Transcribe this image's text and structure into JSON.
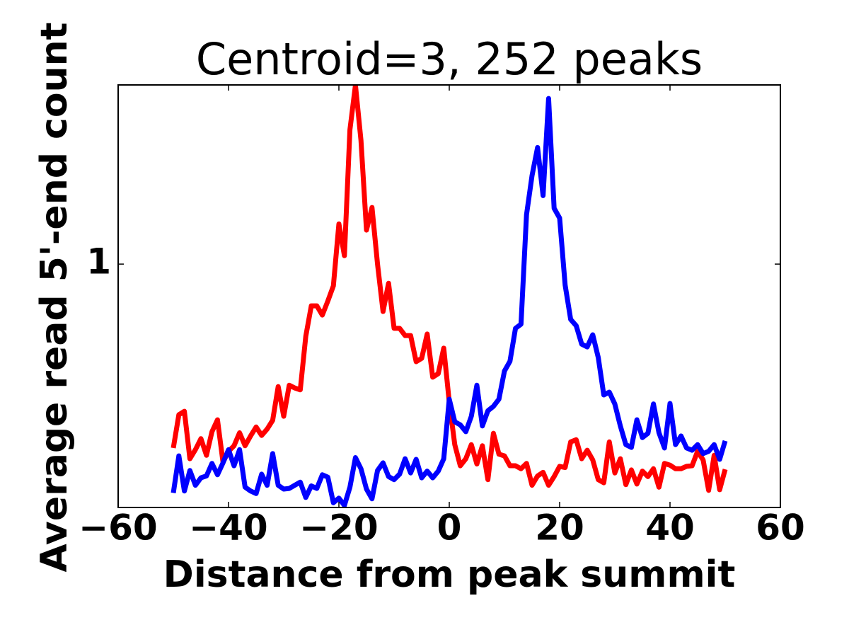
{
  "chart_data": {
    "type": "line",
    "title": "Centroid=3, 252 peaks",
    "xlabel": "Distance from peak summit",
    "ylabel": "Average read 5'-end count",
    "x": [
      -50,
      -49,
      -48,
      -47,
      -46,
      -45,
      -44,
      -43,
      -42,
      -41,
      -40,
      -39,
      -38,
      -37,
      -36,
      -35,
      -34,
      -33,
      -32,
      -31,
      -30,
      -29,
      -28,
      -27,
      -26,
      -25,
      -24,
      -23,
      -22,
      -21,
      -20,
      -19,
      -18,
      -17,
      -16,
      -15,
      -14,
      -13,
      -12,
      -11,
      -10,
      -9,
      -8,
      -7,
      -6,
      -5,
      -4,
      -3,
      -2,
      -1,
      0,
      1,
      2,
      3,
      4,
      5,
      6,
      7,
      8,
      9,
      10,
      11,
      12,
      13,
      14,
      15,
      16,
      17,
      18,
      19,
      20,
      21,
      22,
      23,
      24,
      25,
      26,
      27,
      28,
      29,
      30,
      31,
      32,
      33,
      34,
      35,
      36,
      37,
      38,
      39,
      40,
      41,
      42,
      43,
      44,
      45,
      46,
      47,
      48,
      49,
      50
    ],
    "series": [
      {
        "color": "#ff0000",
        "values": [
          0.547,
          0.61,
          0.617,
          0.528,
          0.544,
          0.564,
          0.534,
          0.577,
          0.6,
          0.522,
          0.541,
          0.551,
          0.575,
          0.551,
          0.569,
          0.586,
          0.57,
          0.582,
          0.599,
          0.669,
          0.607,
          0.672,
          0.666,
          0.662,
          0.789,
          0.872,
          0.872,
          0.846,
          0.886,
          0.931,
          1.141,
          1.028,
          1.554,
          1.799,
          1.501,
          1.118,
          1.204,
          1.0,
          0.856,
          0.939,
          0.81,
          0.81,
          0.791,
          0.791,
          0.726,
          0.734,
          0.795,
          0.69,
          0.698,
          0.759,
          0.636,
          0.553,
          0.516,
          0.528,
          0.553,
          0.519,
          0.551,
          0.493,
          0.574,
          0.536,
          0.533,
          0.516,
          0.516,
          0.511,
          0.52,
          0.484,
          0.499,
          0.505,
          0.484,
          0.498,
          0.515,
          0.513,
          0.558,
          0.562,
          0.528,
          0.543,
          0.526,
          0.493,
          0.488,
          0.558,
          0.504,
          0.528,
          0.485,
          0.509,
          0.486,
          0.507,
          0.498,
          0.511,
          0.481,
          0.52,
          0.517,
          0.511,
          0.511,
          0.515,
          0.516,
          0.541,
          0.526,
          0.476,
          0.534,
          0.477,
          0.51
        ]
      },
      {
        "color": "#0000ff",
        "values": [
          0.472,
          0.533,
          0.475,
          0.508,
          0.484,
          0.496,
          0.499,
          0.52,
          0.501,
          0.521,
          0.544,
          0.516,
          0.544,
          0.481,
          0.475,
          0.471,
          0.502,
          0.484,
          0.537,
          0.484,
          0.478,
          0.479,
          0.484,
          0.489,
          0.465,
          0.483,
          0.479,
          0.501,
          0.497,
          0.457,
          0.464,
          0.453,
          0.481,
          0.53,
          0.511,
          0.478,
          0.463,
          0.508,
          0.521,
          0.498,
          0.493,
          0.502,
          0.528,
          0.504,
          0.527,
          0.496,
          0.507,
          0.496,
          0.507,
          0.528,
          0.642,
          0.596,
          0.59,
          0.577,
          0.607,
          0.672,
          0.588,
          0.618,
          0.627,
          0.642,
          0.704,
          0.727,
          0.81,
          0.821,
          1.176,
          1.337,
          1.466,
          1.252,
          1.722,
          1.201,
          1.163,
          0.933,
          0.834,
          0.817,
          0.769,
          0.762,
          0.793,
          0.736,
          0.651,
          0.657,
          0.632,
          0.588,
          0.553,
          0.548,
          0.6,
          0.566,
          0.574,
          0.632,
          0.575,
          0.547,
          0.633,
          0.553,
          0.569,
          0.547,
          0.543,
          0.553,
          0.537,
          0.541,
          0.553,
          0.527,
          0.56
        ]
      }
    ],
    "xlim": [
      -60,
      60
    ],
    "xticks": [
      {
        "value": -60,
        "label": "−60"
      },
      {
        "value": -40,
        "label": "−40"
      },
      {
        "value": -20,
        "label": "−20"
      },
      0,
      20,
      40,
      60
    ],
    "ylim": [
      0.45,
      1.8
    ],
    "yticks": [
      1
    ],
    "yscale": "log",
    "grid": false
  }
}
